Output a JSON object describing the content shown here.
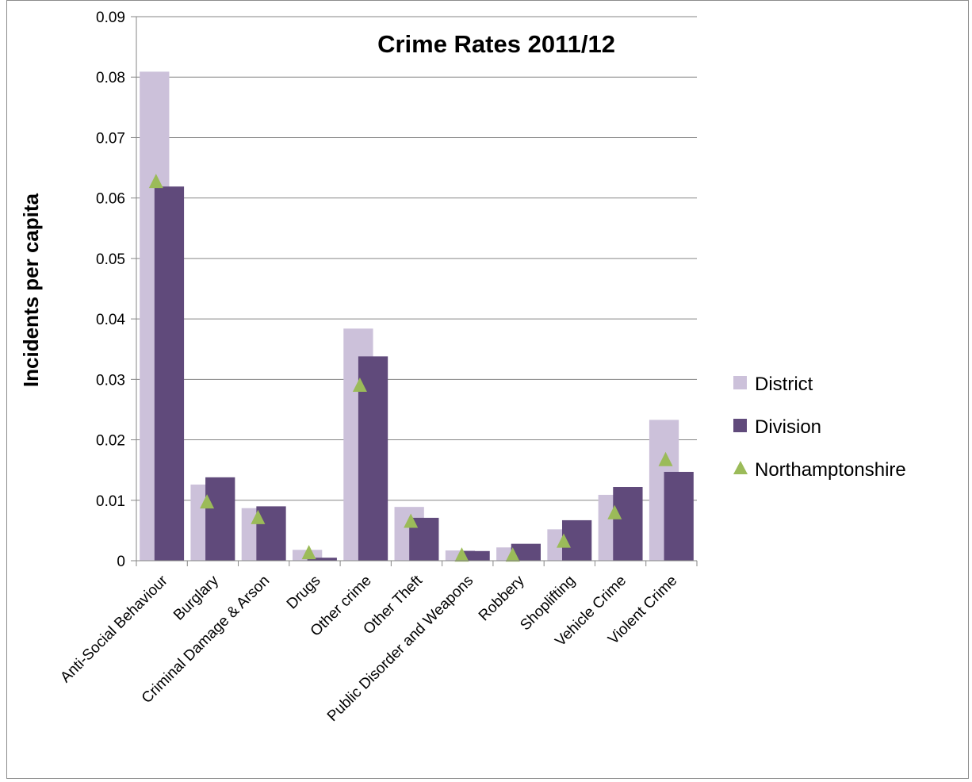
{
  "chart_data": {
    "type": "bar",
    "title": "Crime Rates 2011/12",
    "xlabel": "",
    "ylabel": "Incidents per capita",
    "ylim": [
      0,
      0.09
    ],
    "yticks": [
      "0",
      "0.01",
      "0.02",
      "0.03",
      "0.04",
      "0.05",
      "0.06",
      "0.07",
      "0.08",
      "0.09"
    ],
    "grid": true,
    "legend_position": "right",
    "categories": [
      "Anti-Social Behaviour",
      "Burglary",
      "Criminal Damage & Arson",
      "Drugs",
      "Other crime",
      "Other Theft",
      "Public Disorder and Weapons",
      "Robbery",
      "Shoplifting",
      "Vehicle Crime",
      "Violent Crime"
    ],
    "series": [
      {
        "name": "District",
        "kind": "bar",
        "color": "#ccc1da",
        "values": [
          0.0809,
          0.0126,
          0.0087,
          0.0018,
          0.0384,
          0.0089,
          0.0017,
          0.0022,
          0.0052,
          0.0109,
          0.0233
        ]
      },
      {
        "name": "Division",
        "kind": "bar",
        "color": "#604a7b",
        "values": [
          0.0619,
          0.0138,
          0.009,
          0.0005,
          0.0338,
          0.0071,
          0.0016,
          0.0028,
          0.0067,
          0.0122,
          0.0147
        ]
      },
      {
        "name": "Northamptonshire",
        "kind": "marker",
        "marker": "triangle",
        "color": "#9bbb59",
        "values": [
          0.0627,
          0.0097,
          0.0071,
          0.0013,
          0.029,
          0.0065,
          0.0009,
          0.0009,
          0.0032,
          0.0079,
          0.0167
        ]
      }
    ]
  }
}
